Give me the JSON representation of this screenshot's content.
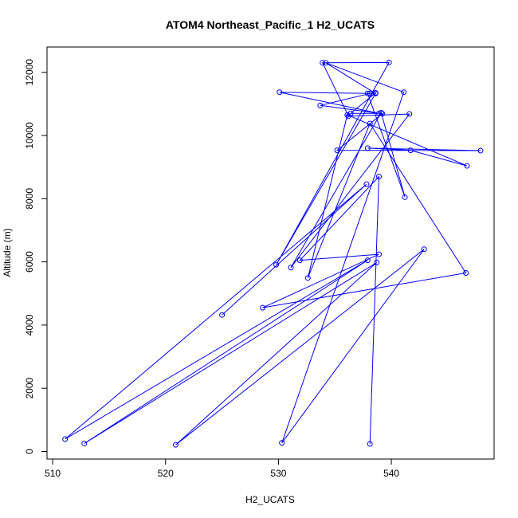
{
  "chart_data": {
    "type": "line",
    "title": "ATOM4 Northeast_Pacific_1 H2_UCATS",
    "xlabel": "H2_UCATS",
    "ylabel": "Altitude (m)",
    "xlim": [
      509.5,
      549.1
    ],
    "ylim": [
      -240,
      12800
    ],
    "x_ticks": [
      510,
      520,
      530,
      540
    ],
    "x_tick_labels": [
      "510",
      "520",
      "530",
      "540"
    ],
    "y_ticks": [
      0,
      2000,
      4000,
      6000,
      8000,
      10000,
      12000
    ],
    "y_tick_labels": [
      "0",
      "2000",
      "4000",
      "6000",
      "8000",
      "10000",
      "12000"
    ],
    "grid": false,
    "markers": "open-circle",
    "color": "#0000ff",
    "series": [
      {
        "x": [
          525.0,
          537.8,
          511.1,
          537.9,
          512.8,
          538.7,
          520.9,
          542.9,
          530.3,
          541.1,
          534.2,
          538.6,
          529.8,
          539.8,
          533.9,
          536.2,
          541.6,
          531.1,
          539.1,
          541.2,
          537.9,
          538.6,
          536.4,
          538.9,
          530.1,
          538.1,
          533.7,
          539.2,
          535.2,
          547.9,
          537.9,
          541.7,
          546.7,
          536.1,
          532.6,
          538.1,
          546.6,
          528.6,
          538.9,
          531.9,
          538.9,
          538.1
        ],
        "y": [
          4320,
          8460,
          390,
          6050,
          250,
          5980,
          210,
          6400,
          270,
          11370,
          12300,
          11330,
          5910,
          12310,
          12300,
          10610,
          10680,
          5820,
          10720,
          8050,
          11330,
          11350,
          10700,
          10700,
          11370,
          11330,
          10950,
          10690,
          9530,
          9520,
          9600,
          9530,
          9040,
          10650,
          5490,
          10380,
          5650,
          4550,
          6240,
          6050,
          8700,
          240
        ]
      }
    ]
  }
}
